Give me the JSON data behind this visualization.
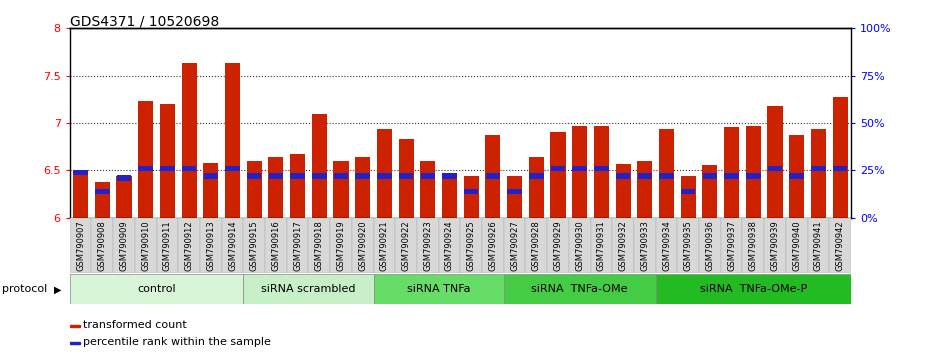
{
  "title": "GDS4371 / 10520698",
  "samples": [
    "GSM790907",
    "GSM790908",
    "GSM790909",
    "GSM790910",
    "GSM790911",
    "GSM790912",
    "GSM790913",
    "GSM790914",
    "GSM790915",
    "GSM790916",
    "GSM790917",
    "GSM790918",
    "GSM790919",
    "GSM790920",
    "GSM790921",
    "GSM790922",
    "GSM790923",
    "GSM790924",
    "GSM790925",
    "GSM790926",
    "GSM790927",
    "GSM790928",
    "GSM790929",
    "GSM790930",
    "GSM790931",
    "GSM790932",
    "GSM790933",
    "GSM790934",
    "GSM790935",
    "GSM790936",
    "GSM790937",
    "GSM790938",
    "GSM790939",
    "GSM790940",
    "GSM790941",
    "GSM790942"
  ],
  "transformed_count": [
    6.48,
    6.38,
    6.44,
    7.23,
    7.2,
    7.63,
    6.58,
    7.63,
    6.6,
    6.64,
    6.67,
    7.1,
    6.6,
    6.64,
    6.94,
    6.83,
    6.6,
    6.44,
    6.44,
    6.87,
    6.44,
    6.64,
    6.9,
    6.97,
    6.97,
    6.57,
    6.6,
    6.94,
    6.44,
    6.56,
    6.96,
    6.97,
    7.18,
    6.87,
    6.94,
    7.27
  ],
  "percentile": [
    24,
    14,
    21,
    26,
    26,
    26,
    22,
    26,
    22,
    22,
    22,
    22,
    22,
    22,
    22,
    22,
    22,
    22,
    14,
    22,
    14,
    22,
    26,
    26,
    26,
    22,
    22,
    22,
    14,
    22,
    22,
    22,
    26,
    22,
    26,
    26
  ],
  "ymin": 6.0,
  "ymax": 8.0,
  "yticks": [
    6.0,
    6.5,
    7.0,
    7.5,
    8.0
  ],
  "right_yticks": [
    0,
    25,
    50,
    75,
    100
  ],
  "bar_color": "#cc2200",
  "percentile_color": "#2222cc",
  "plot_bg_color": "#ffffff",
  "xtick_bg_color": "#d8d8d8",
  "groups": [
    {
      "label": "control",
      "start": 0,
      "end": 8,
      "color": "#d8f5d8"
    },
    {
      "label": "siRNA scrambled",
      "start": 8,
      "end": 14,
      "color": "#c8f0c8"
    },
    {
      "label": "siRNA TNFa",
      "start": 14,
      "end": 20,
      "color": "#66dd66"
    },
    {
      "label": "siRNA  TNFa-OMe",
      "start": 20,
      "end": 27,
      "color": "#44cc44"
    },
    {
      "label": "siRNA  TNFa-OMe-P",
      "start": 27,
      "end": 36,
      "color": "#22bb22"
    }
  ]
}
